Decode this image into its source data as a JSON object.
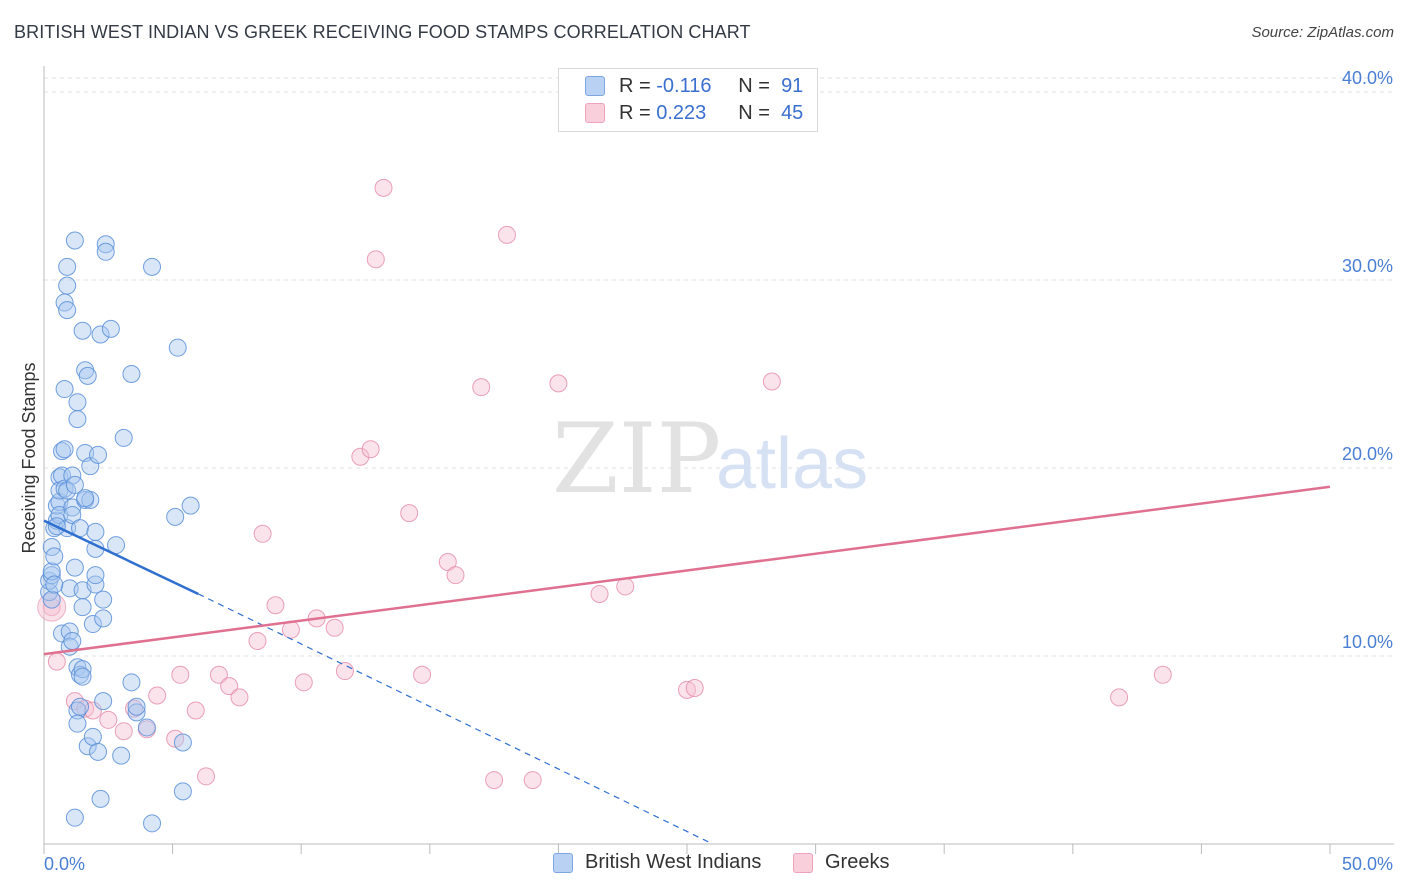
{
  "title": "BRITISH WEST INDIAN VS GREEK RECEIVING FOOD STAMPS CORRELATION CHART",
  "source": "Source: ZipAtlas.com",
  "watermark": {
    "zip": "ZIP",
    "atlas": "atlas"
  },
  "colors": {
    "blue": "#5b8fd8",
    "blue_fill": "#a9c7ef",
    "pink": "#e58aa8",
    "pink_fill": "#f6c2d3",
    "blue_line": "#2f6fd0",
    "pink_line": "#e0708f",
    "grid": "#e0e0e0",
    "axis_text": "#4a7fd4"
  },
  "legend": {
    "rows": [
      {
        "r_label": "R =",
        "r_value": "-0.116",
        "n_label": "N =",
        "n_value": "91"
      },
      {
        "r_label": "R =",
        "r_value": "0.223",
        "n_label": "N =",
        "n_value": "45"
      }
    ]
  },
  "bottom_legend": [
    "British West Indians",
    "Greeks"
  ],
  "chart_data": {
    "type": "scatter",
    "title": "BRITISH WEST INDIAN VS GREEK RECEIVING FOOD STAMPS CORRELATION CHART",
    "xlabel": "",
    "ylabel": "Receiving Food Stamps",
    "xlim": [
      0,
      50
    ],
    "ylim": [
      0,
      40
    ],
    "x_tick_labels": [
      "0.0%",
      "50.0%"
    ],
    "y_ticks": [
      10,
      20,
      30,
      40
    ],
    "y_tick_labels": [
      "10.0%",
      "20.0%",
      "30.0%",
      "40.0%"
    ],
    "series": [
      {
        "name": "British West Indians",
        "r": -0.116,
        "n": 91,
        "trend": {
          "x": [
            0,
            6
          ],
          "y": [
            17.2,
            13.3
          ],
          "dashed_extension_to": [
            26,
            0
          ]
        },
        "points": [
          [
            0.2,
            13.4
          ],
          [
            0.2,
            14.0
          ],
          [
            0.3,
            14.3
          ],
          [
            0.3,
            15.8
          ],
          [
            0.3,
            13.0
          ],
          [
            0.3,
            14.5
          ],
          [
            0.4,
            16.8
          ],
          [
            0.4,
            15.3
          ],
          [
            0.5,
            17.2
          ],
          [
            0.5,
            18.0
          ],
          [
            0.6,
            18.2
          ],
          [
            0.6,
            17.5
          ],
          [
            0.6,
            19.5
          ],
          [
            0.6,
            18.8
          ],
          [
            0.7,
            11.2
          ],
          [
            0.7,
            19.6
          ],
          [
            0.7,
            20.9
          ],
          [
            0.8,
            21.0
          ],
          [
            0.8,
            18.9
          ],
          [
            0.8,
            28.8
          ],
          [
            0.8,
            24.2
          ],
          [
            0.9,
            30.7
          ],
          [
            0.9,
            29.7
          ],
          [
            0.9,
            28.4
          ],
          [
            0.9,
            16.8
          ],
          [
            1.0,
            11.3
          ],
          [
            1.0,
            13.6
          ],
          [
            1.0,
            10.5
          ],
          [
            1.1,
            17.9
          ],
          [
            1.1,
            17.5
          ],
          [
            1.1,
            19.6
          ],
          [
            1.1,
            10.8
          ],
          [
            1.2,
            14.7
          ],
          [
            1.2,
            32.1
          ],
          [
            1.2,
            1.4
          ],
          [
            1.3,
            9.4
          ],
          [
            1.3,
            23.5
          ],
          [
            1.3,
            22.6
          ],
          [
            1.3,
            7.1
          ],
          [
            1.3,
            6.4
          ],
          [
            1.4,
            16.8
          ],
          [
            1.4,
            9.0
          ],
          [
            1.4,
            7.3
          ],
          [
            1.5,
            9.3
          ],
          [
            1.5,
            27.3
          ],
          [
            1.5,
            12.6
          ],
          [
            1.5,
            13.5
          ],
          [
            1.5,
            8.9
          ],
          [
            1.6,
            25.2
          ],
          [
            1.6,
            20.8
          ],
          [
            1.6,
            18.3
          ],
          [
            1.7,
            24.9
          ],
          [
            1.7,
            5.2
          ],
          [
            1.8,
            20.1
          ],
          [
            1.8,
            18.3
          ],
          [
            1.9,
            11.7
          ],
          [
            1.9,
            5.7
          ],
          [
            2.0,
            13.8
          ],
          [
            2.0,
            14.3
          ],
          [
            2.0,
            15.7
          ],
          [
            2.0,
            16.6
          ],
          [
            2.1,
            4.9
          ],
          [
            2.1,
            20.7
          ],
          [
            2.2,
            2.4
          ],
          [
            2.2,
            27.1
          ],
          [
            2.3,
            13.0
          ],
          [
            2.3,
            12.0
          ],
          [
            2.3,
            7.6
          ],
          [
            2.4,
            31.9
          ],
          [
            2.4,
            31.5
          ],
          [
            2.6,
            27.4
          ],
          [
            2.8,
            15.9
          ],
          [
            3.0,
            4.7
          ],
          [
            3.1,
            21.6
          ],
          [
            3.4,
            8.6
          ],
          [
            3.4,
            25.0
          ],
          [
            3.6,
            7.0
          ],
          [
            3.6,
            7.3
          ],
          [
            4.0,
            6.2
          ],
          [
            4.2,
            1.1
          ],
          [
            4.2,
            30.7
          ],
          [
            5.1,
            17.4
          ],
          [
            5.2,
            26.4
          ],
          [
            5.4,
            2.8
          ],
          [
            5.4,
            5.4
          ],
          [
            5.7,
            18.0
          ],
          [
            1.6,
            18.4
          ],
          [
            0.9,
            18.8
          ],
          [
            1.2,
            19.1
          ],
          [
            0.5,
            16.9
          ],
          [
            0.4,
            13.8
          ]
        ]
      },
      {
        "name": "Greeks",
        "r": 0.223,
        "n": 45,
        "trend": {
          "x": [
            0,
            50
          ],
          "y": [
            10.1,
            19.0
          ]
        },
        "points": [
          [
            0.3,
            12.6
          ],
          [
            0.5,
            9.7
          ],
          [
            1.2,
            7.6
          ],
          [
            1.6,
            7.2
          ],
          [
            1.9,
            7.1
          ],
          [
            2.5,
            6.6
          ],
          [
            3.1,
            6.0
          ],
          [
            3.5,
            7.2
          ],
          [
            4.0,
            6.1
          ],
          [
            4.4,
            7.9
          ],
          [
            5.1,
            5.6
          ],
          [
            5.3,
            9.0
          ],
          [
            5.9,
            7.1
          ],
          [
            6.3,
            3.6
          ],
          [
            6.8,
            9.0
          ],
          [
            7.2,
            8.4
          ],
          [
            7.6,
            7.8
          ],
          [
            8.3,
            10.8
          ],
          [
            8.5,
            16.5
          ],
          [
            9.0,
            12.7
          ],
          [
            9.6,
            11.4
          ],
          [
            10.1,
            8.6
          ],
          [
            10.6,
            12.0
          ],
          [
            11.3,
            11.5
          ],
          [
            11.7,
            9.2
          ],
          [
            12.3,
            20.6
          ],
          [
            12.7,
            21.0
          ],
          [
            12.9,
            31.1
          ],
          [
            13.2,
            34.9
          ],
          [
            14.2,
            17.6
          ],
          [
            14.7,
            9.0
          ],
          [
            15.7,
            15.0
          ],
          [
            16.0,
            14.3
          ],
          [
            17.0,
            24.3
          ],
          [
            17.5,
            3.4
          ],
          [
            18.0,
            32.4
          ],
          [
            19.0,
            3.4
          ],
          [
            20.0,
            24.5
          ],
          [
            21.6,
            13.3
          ],
          [
            22.6,
            13.7
          ],
          [
            25.0,
            8.2
          ],
          [
            25.3,
            8.3
          ],
          [
            28.3,
            24.6
          ],
          [
            41.8,
            7.8
          ],
          [
            43.5,
            9.0
          ]
        ]
      }
    ]
  }
}
